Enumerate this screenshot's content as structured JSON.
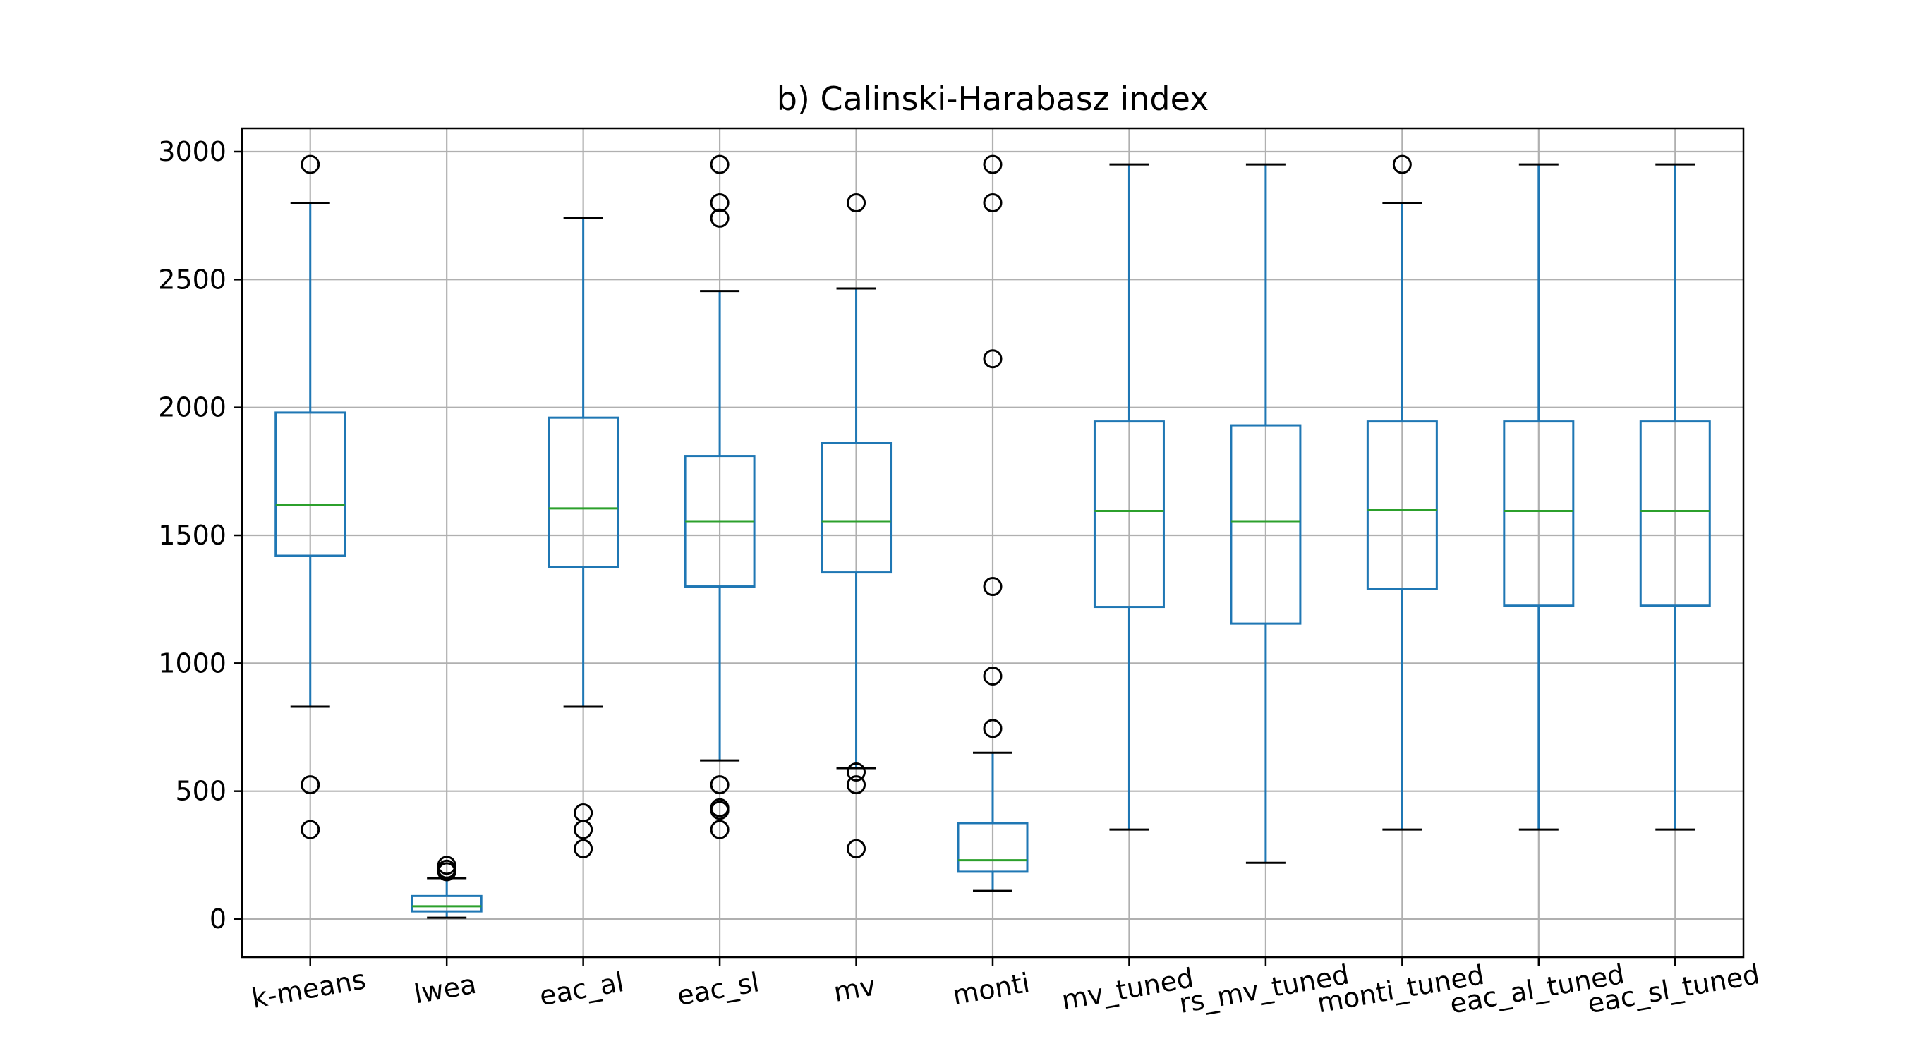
{
  "chart_data": {
    "type": "box",
    "title": "b) Calinski-Harabasz index",
    "xlabel": "",
    "ylabel": "",
    "ylim": [
      -150,
      3100
    ],
    "yticks": [
      0,
      500,
      1000,
      1500,
      2000,
      2500,
      3000
    ],
    "grid": true,
    "categories": [
      "k-means",
      "lwea",
      "eac_al",
      "eac_sl",
      "mv",
      "monti",
      "mv_tuned",
      "rs_mv_tuned",
      "monti_tuned",
      "eac_al_tuned",
      "eac_sl_tuned"
    ],
    "boxes": [
      {
        "name": "k-means",
        "whislo": 830,
        "q1": 1420,
        "med": 1620,
        "q3": 1980,
        "whishi": 2800,
        "fliers": [
          2950,
          525,
          350
        ]
      },
      {
        "name": "lwea",
        "whislo": 5,
        "q1": 30,
        "med": 50,
        "q3": 90,
        "whishi": 160,
        "fliers": [
          210,
          195,
          185
        ]
      },
      {
        "name": "eac_al",
        "whislo": 830,
        "q1": 1375,
        "med": 1605,
        "q3": 1960,
        "whishi": 2740,
        "fliers": [
          415,
          350,
          275
        ]
      },
      {
        "name": "eac_sl",
        "whislo": 620,
        "q1": 1300,
        "med": 1555,
        "q3": 1810,
        "whishi": 2455,
        "fliers": [
          2950,
          2800,
          2740,
          525,
          435,
          425,
          350
        ]
      },
      {
        "name": "mv",
        "whislo": 590,
        "q1": 1355,
        "med": 1555,
        "q3": 1860,
        "whishi": 2465,
        "fliers": [
          2800,
          575,
          525,
          275
        ]
      },
      {
        "name": "monti",
        "whislo": 110,
        "q1": 185,
        "med": 230,
        "q3": 375,
        "whishi": 650,
        "fliers": [
          2950,
          2800,
          2190,
          1300,
          950,
          745
        ]
      },
      {
        "name": "mv_tuned",
        "whislo": 350,
        "q1": 1220,
        "med": 1595,
        "q3": 1945,
        "whishi": 2950,
        "fliers": []
      },
      {
        "name": "rs_mv_tuned",
        "whislo": 220,
        "q1": 1155,
        "med": 1555,
        "q3": 1930,
        "whishi": 2950,
        "fliers": []
      },
      {
        "name": "monti_tuned",
        "whislo": 350,
        "q1": 1290,
        "med": 1600,
        "q3": 1945,
        "whishi": 2800,
        "fliers": [
          2950
        ]
      },
      {
        "name": "eac_al_tuned",
        "whislo": 350,
        "q1": 1225,
        "med": 1595,
        "q3": 1945,
        "whishi": 2950,
        "fliers": []
      },
      {
        "name": "eac_sl_tuned",
        "whislo": 350,
        "q1": 1225,
        "med": 1595,
        "q3": 1945,
        "whishi": 2950,
        "fliers": []
      }
    ],
    "colors": {
      "box": "#1f77b4",
      "median": "#2ca02c",
      "flier": "#000000",
      "grid": "#b0b0b0"
    }
  }
}
